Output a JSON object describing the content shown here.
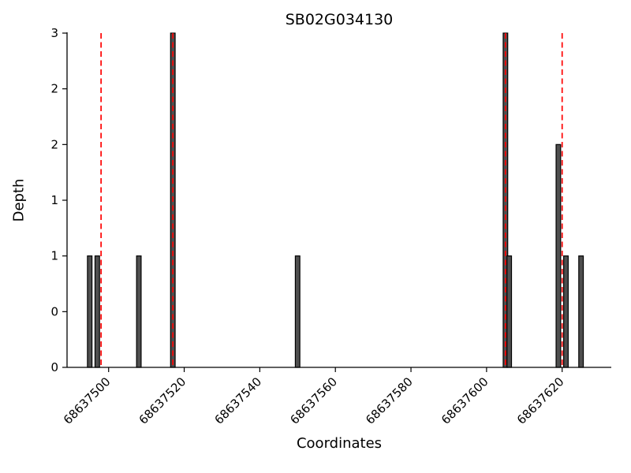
{
  "figure": {
    "background": "#ffffff"
  },
  "chart_data": {
    "type": "bar",
    "title": "SB02G034130",
    "xlabel": "Coordinates",
    "ylabel": "Depth",
    "xlim": [
      68637489,
      68637633
    ],
    "ylim": [
      0,
      3
    ],
    "grid": false,
    "legend": null,
    "bar_width": 1.2,
    "bar_color": "#4f4f4f",
    "bar_edge_color": "#000000",
    "vline_color": "#ff0000",
    "axis_color": "#000000",
    "yticks": [
      {
        "value": 0,
        "label": "0"
      },
      {
        "value": 0.5,
        "label": "0"
      },
      {
        "value": 1,
        "label": "1"
      },
      {
        "value": 1.5,
        "label": "1"
      },
      {
        "value": 2,
        "label": "2"
      },
      {
        "value": 2.5,
        "label": "2"
      },
      {
        "value": 3,
        "label": "3"
      }
    ],
    "xticks": [
      {
        "value": 68637500,
        "label": "68637500"
      },
      {
        "value": 68637520,
        "label": "68637520"
      },
      {
        "value": 68637540,
        "label": "68637540"
      },
      {
        "value": 68637560,
        "label": "68637560"
      },
      {
        "value": 68637580,
        "label": "68637580"
      },
      {
        "value": 68637600,
        "label": "68637600"
      },
      {
        "value": 68637620,
        "label": "68637620"
      }
    ],
    "bars": [
      {
        "x": 68637495,
        "depth": 1
      },
      {
        "x": 68637497,
        "depth": 1
      },
      {
        "x": 68637508,
        "depth": 1
      },
      {
        "x": 68637517,
        "depth": 3
      },
      {
        "x": 68637550,
        "depth": 1
      },
      {
        "x": 68637605,
        "depth": 3
      },
      {
        "x": 68637606,
        "depth": 1
      },
      {
        "x": 68637619,
        "depth": 2
      },
      {
        "x": 68637621,
        "depth": 1
      },
      {
        "x": 68637625,
        "depth": 1
      }
    ],
    "vlines": [
      68637498,
      68637517,
      68637605,
      68637620
    ]
  }
}
